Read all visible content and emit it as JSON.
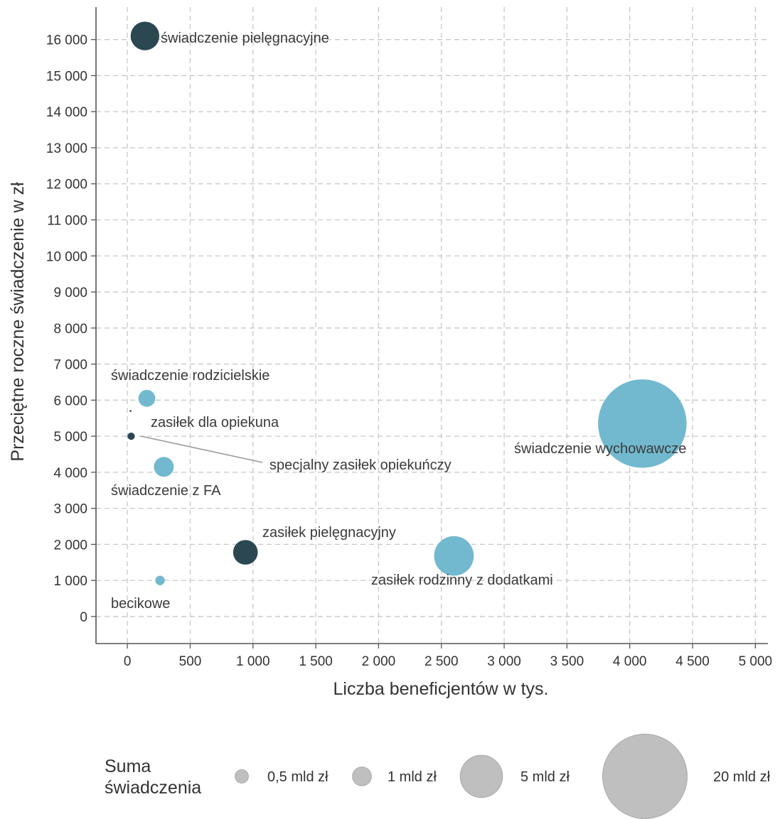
{
  "chart_data": {
    "type": "scatter",
    "xlabel": "Liczba beneficjentów w tys.",
    "ylabel": "Przeciętne roczne świadczenie w zł",
    "xlim": [
      -250,
      5100
    ],
    "ylim": [
      -750,
      16900
    ],
    "x_ticks": [
      0,
      500,
      1000,
      1500,
      2000,
      2500,
      3000,
      3500,
      4000,
      4500,
      5000
    ],
    "x_tick_labels": [
      "0",
      "500",
      "1 000",
      "1 500",
      "2 000",
      "2 500",
      "3 000",
      "3 500",
      "4 000",
      "4 500",
      "5 000"
    ],
    "y_ticks": [
      0,
      1000,
      2000,
      3000,
      4000,
      5000,
      6000,
      7000,
      8000,
      9000,
      10000,
      11000,
      12000,
      13000,
      14000,
      15000,
      16000
    ],
    "y_tick_labels": [
      "0",
      "1 000",
      "2 000",
      "3 000",
      "4 000",
      "5 000",
      "6 000",
      "7 000",
      "8 000",
      "9 000",
      "10 000",
      "11 000",
      "12 000",
      "13 000",
      "14 000",
      "15 000",
      "16 000"
    ],
    "grid": true,
    "colors": {
      "dark": "#2b4752",
      "light": "#72b9cf",
      "legend": "#bfbfbf"
    },
    "points": [
      {
        "label": "świadczenie pielęgnacyjne",
        "x": 140,
        "y": 16100,
        "size": 2.3,
        "color": "dark"
      },
      {
        "label": "świadczenie rodzicielskie",
        "x": 155,
        "y": 6050,
        "size": 0.8,
        "color": "light"
      },
      {
        "label": "zasiłek dla opiekuna",
        "x": 30,
        "y": 5000,
        "size": 0.15,
        "color": "dark"
      },
      {
        "label": "specjalny zasiłek opiekuńczy",
        "x": 25,
        "y": 5700,
        "size": 0.01,
        "color": "dark"
      },
      {
        "label": "świadczenie z FA",
        "x": 290,
        "y": 4150,
        "size": 1.1,
        "color": "light"
      },
      {
        "label": "zasiłek pielęgnacyjny",
        "x": 940,
        "y": 1780,
        "size": 1.7,
        "color": "dark"
      },
      {
        "label": "zasiłek rodzinny z dodatkami",
        "x": 2600,
        "y": 1680,
        "size": 4.4,
        "color": "light"
      },
      {
        "label": "becikowe",
        "x": 260,
        "y": 1000,
        "size": 0.25,
        "color": "light"
      },
      {
        "label": "świadczenie wychowawcze",
        "x": 4100,
        "y": 5350,
        "size": 21.9,
        "color": "light"
      }
    ],
    "legend": {
      "title": [
        "Suma",
        "świadczenia"
      ],
      "placement": "bottom",
      "entries": [
        {
          "label": "0,5 mld zł",
          "size": 0.5
        },
        {
          "label": "1 mld zł",
          "size": 1
        },
        {
          "label": "5 mld zł",
          "size": 5
        },
        {
          "label": "20 mld zł",
          "size": 20
        }
      ]
    }
  }
}
